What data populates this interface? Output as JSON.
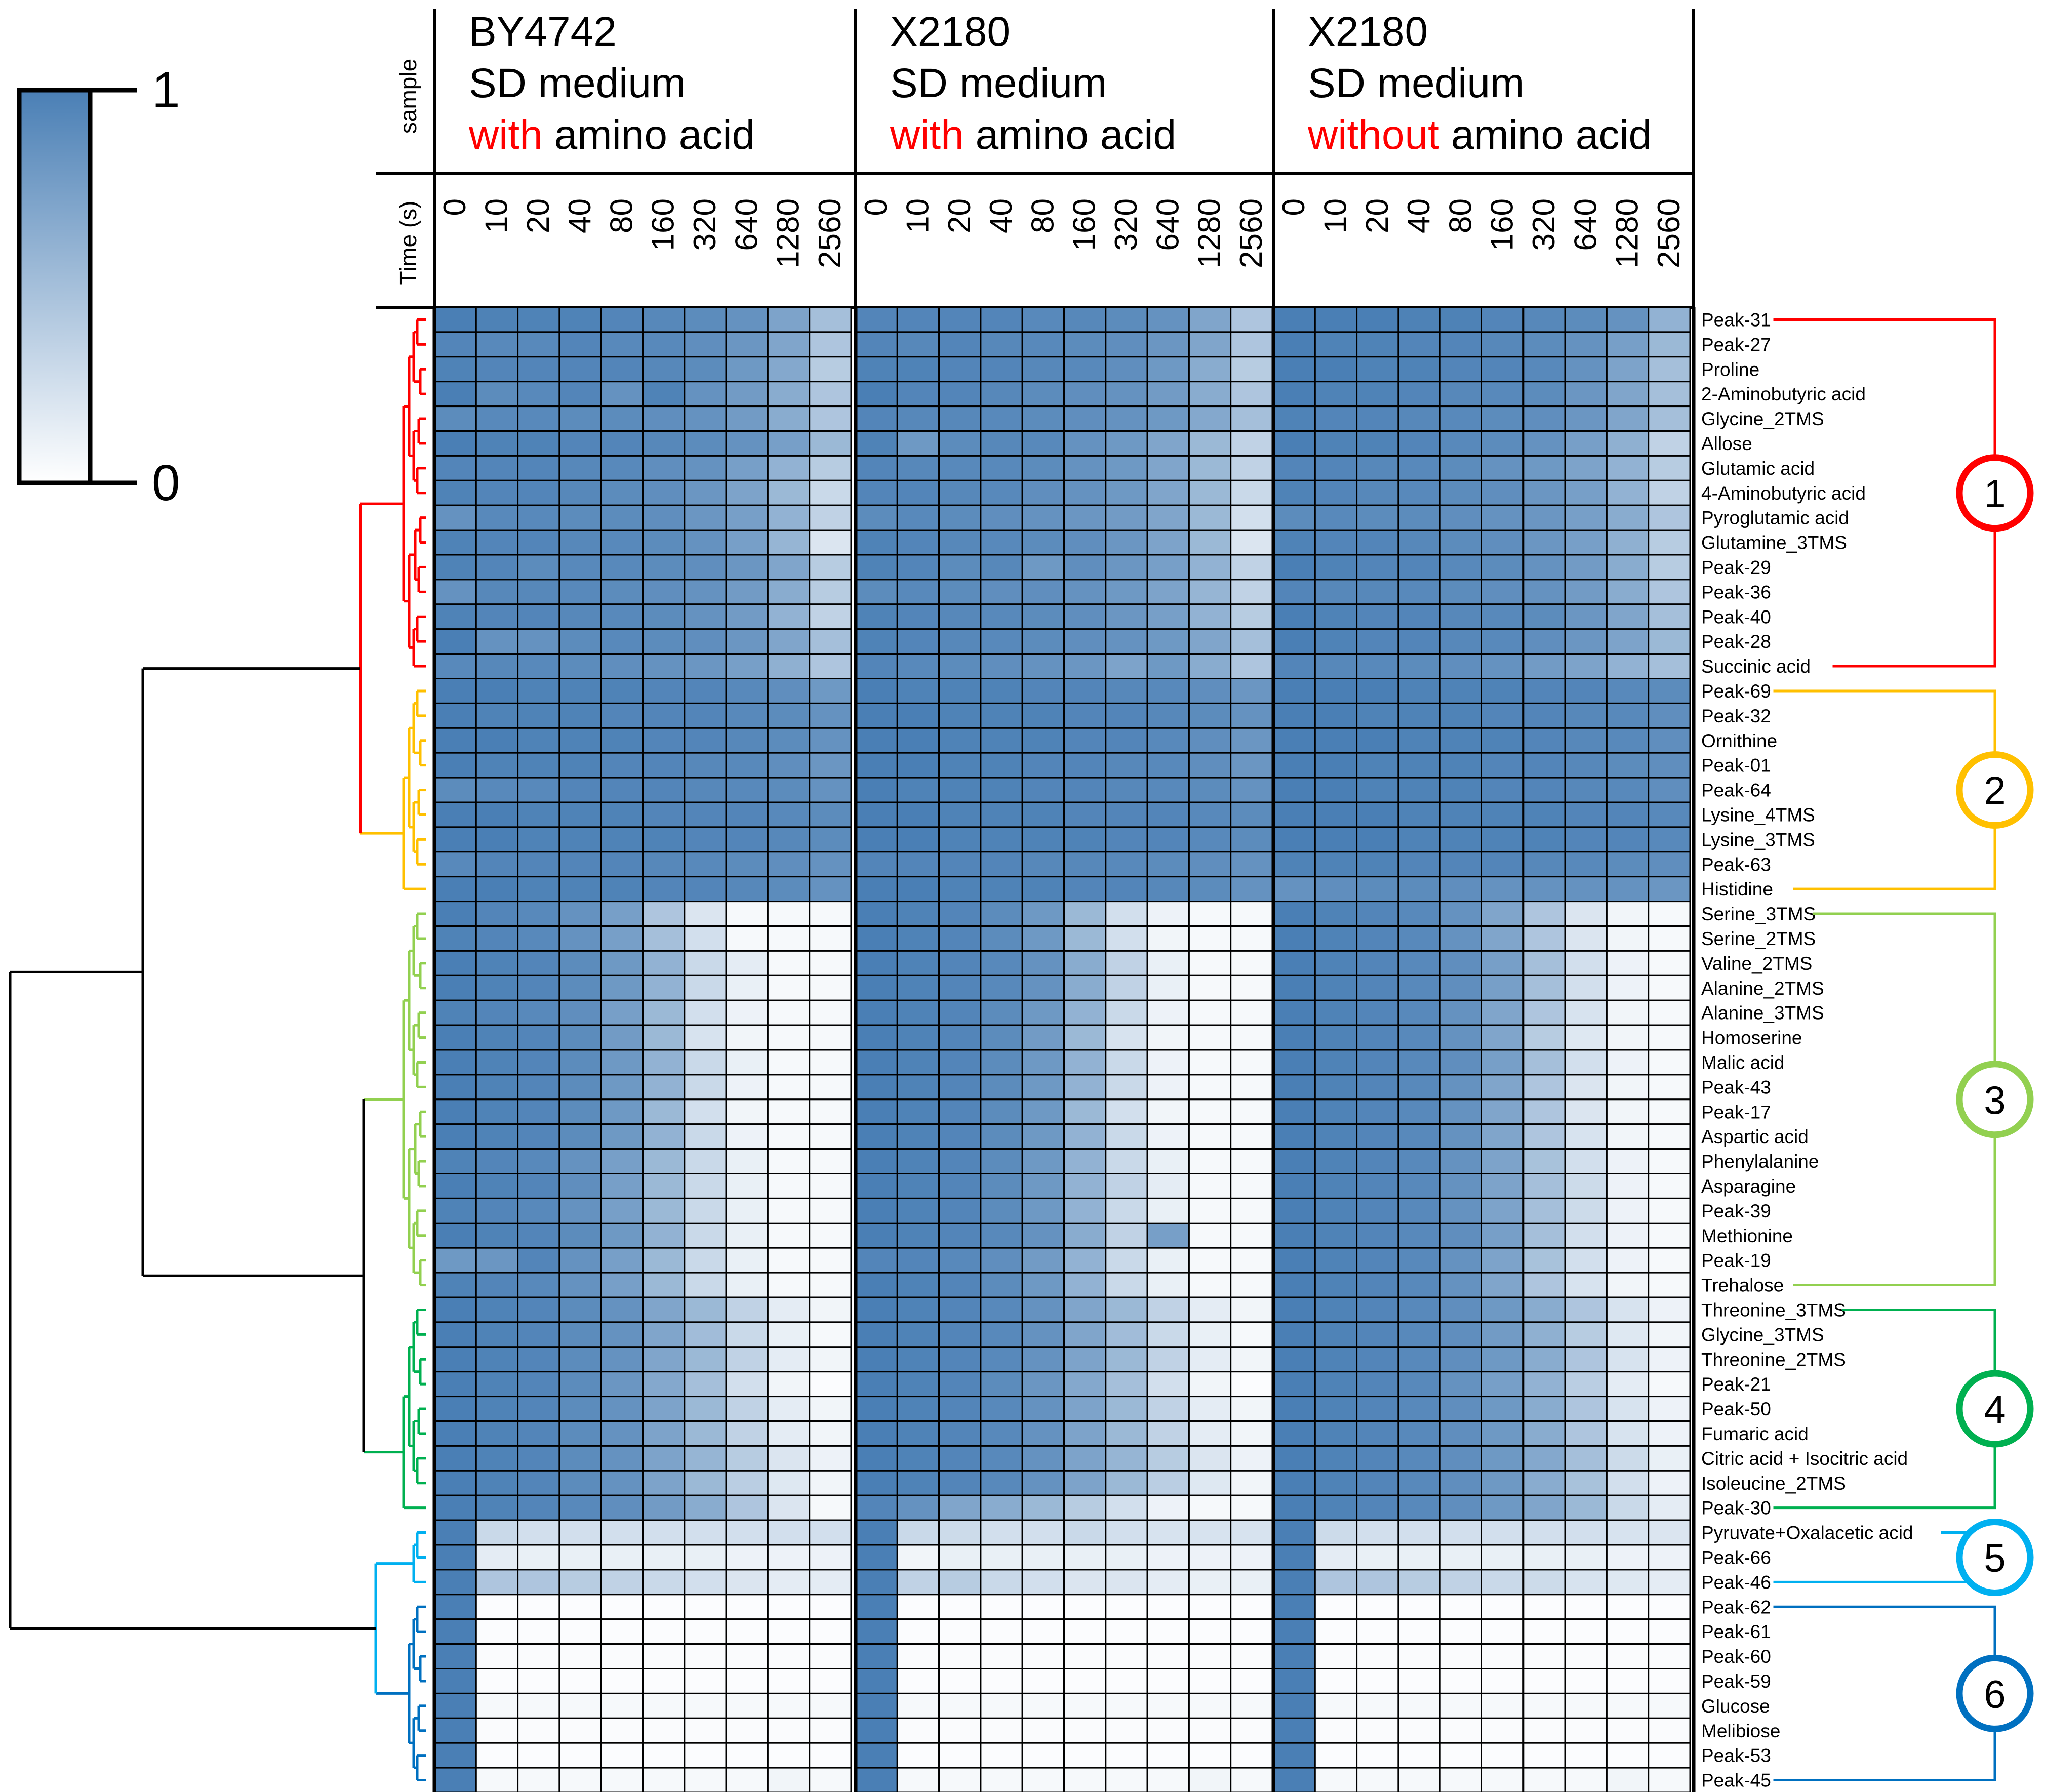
{
  "chart_data": {
    "type": "heatmap",
    "legend": {
      "max_label": "1",
      "min_label": "0",
      "high_color": "#4a7fb5",
      "low_color": "#ffffff"
    },
    "side_labels": {
      "sample": "sample",
      "time": "Time (s)"
    },
    "samples": [
      {
        "lines": [
          {
            "parts": [
              {
                "text": "BY4742",
                "highlight": false
              }
            ]
          },
          {
            "parts": [
              {
                "text": "SD medium",
                "highlight": false
              }
            ]
          },
          {
            "parts": [
              {
                "text": "with",
                "highlight": true
              },
              {
                "text": " amino acid",
                "highlight": false
              }
            ]
          }
        ]
      },
      {
        "lines": [
          {
            "parts": [
              {
                "text": "X2180",
                "highlight": false
              }
            ]
          },
          {
            "parts": [
              {
                "text": "SD medium",
                "highlight": false
              }
            ]
          },
          {
            "parts": [
              {
                "text": "with",
                "highlight": true
              },
              {
                "text": " amino acid",
                "highlight": false
              }
            ]
          }
        ]
      },
      {
        "lines": [
          {
            "parts": [
              {
                "text": "X2180",
                "highlight": false
              }
            ]
          },
          {
            "parts": [
              {
                "text": "SD medium",
                "highlight": false
              }
            ]
          },
          {
            "parts": [
              {
                "text": "without",
                "highlight": true
              },
              {
                "text": " amino acid",
                "highlight": false
              }
            ]
          }
        ]
      }
    ],
    "highlight_color": "#ff0000",
    "time_points": [
      "0",
      "10",
      "20",
      "40",
      "80",
      "160",
      "320",
      "640",
      "1280",
      "2560"
    ],
    "metabolites": [
      "Peak-31",
      "Peak-27",
      "Proline",
      "2-Aminobutyric acid",
      "Glycine_2TMS",
      "Allose",
      "Glutamic acid",
      "4-Aminobutyric acid",
      "Pyroglutamic acid",
      "Glutamine_3TMS",
      "Peak-29",
      "Peak-36",
      "Peak-40",
      "Peak-28",
      "Succinic acid",
      "Peak-69",
      "Peak-32",
      "Ornithine",
      "Peak-01",
      "Peak-64",
      "Lysine_4TMS",
      "Lysine_3TMS",
      "Peak-63",
      "Histidine",
      "Serine_3TMS",
      "Serine_2TMS",
      "Valine_2TMS",
      "Alanine_2TMS",
      "Alanine_3TMS",
      "Homoserine",
      "Malic acid",
      "Peak-43",
      "Peak-17",
      "Aspartic acid",
      "Phenylalanine",
      "Asparagine",
      "Peak-39",
      "Methionine",
      "Peak-19",
      "Trehalose",
      "Threonine_3TMS",
      "Glycine_3TMS",
      "Threonine_2TMS",
      "Peak-21",
      "Peak-50",
      "Fumaric acid",
      "Citric acid + Isocitric acid",
      "Isoleucine_2TMS",
      "Peak-30",
      "Pyruvate+Oxalacetic acid",
      "Peak-66",
      "Peak-46",
      "Peak-62",
      "Peak-61",
      "Peak-60",
      "Peak-59",
      "Glucose",
      "Melibiose",
      "Peak-53",
      "Peak-45"
    ],
    "clusters": [
      {
        "label": "1",
        "start": 0,
        "end": 14,
        "color": "#ff0000"
      },
      {
        "label": "2",
        "start": 15,
        "end": 23,
        "color": "#ffc000"
      },
      {
        "label": "3",
        "start": 24,
        "end": 39,
        "color": "#92d050"
      },
      {
        "label": "4",
        "start": 40,
        "end": 48,
        "color": "#00b050"
      },
      {
        "label": "5",
        "start": 49,
        "end": 51,
        "color": "#00b0f0"
      },
      {
        "label": "6",
        "start": 52,
        "end": 59,
        "color": "#0070c0"
      }
    ],
    "dendrogram_color": "#000000",
    "values": [
      [
        "1.00 0.98 0.97 0.97 0.95 0.93 0.90 0.85 0.72 0.50",
        "0.95 0.95 0.95 0.95 0.92 0.93 0.90 0.85 0.70 0.45",
        "1.00 1.00 1.00 0.98 0.98 0.95 0.93 0.90 0.85 0.60"
      ],
      [
        "0.95 0.92 0.92 0.95 0.92 0.92 0.88 0.82 0.70 0.45",
        "0.95 0.93 0.95 0.93 0.92 0.90 0.88 0.82 0.70 0.45",
        "1.00 0.97 0.97 0.95 0.95 0.93 0.90 0.85 0.75 0.55"
      ],
      [
        "0.97 0.95 0.95 0.95 0.95 0.93 0.90 0.80 0.68 0.40",
        "0.97 0.97 0.95 0.95 0.93 0.92 0.88 0.80 0.65 0.40",
        "1.00 1.00 0.97 0.97 0.95 0.95 0.92 0.85 0.72 0.50"
      ],
      [
        "1.00 0.90 0.92 0.95 0.85 0.97 0.85 0.78 0.65 0.45",
        "1.00 0.95 0.95 0.93 0.90 0.88 0.85 0.78 0.65 0.45",
        "1.00 0.97 0.97 0.95 0.93 0.92 0.90 0.82 0.70 0.50"
      ],
      [
        "0.90 0.92 0.92 0.90 0.90 0.88 0.85 0.78 0.65 0.45",
        "0.95 0.93 0.93 0.92 0.90 0.88 0.85 0.80 0.68 0.50",
        "0.97 0.95 0.95 0.93 0.92 0.90 0.88 0.82 0.70 0.50"
      ],
      [
        "1.00 0.97 0.97 0.95 0.95 0.93 0.90 0.85 0.75 0.55",
        "0.97 0.80 0.90 0.93 0.92 0.85 0.80 0.70 0.55 0.35",
        "1.00 0.97 0.97 0.95 0.92 0.90 0.85 0.75 0.62 0.35"
      ],
      [
        "0.95 0.95 0.95 0.93 0.92 0.88 0.85 0.75 0.60 0.40",
        "0.95 0.93 0.92 0.92 0.90 0.85 0.80 0.70 0.55 0.35",
        "0.95 0.95 0.93 0.92 0.90 0.85 0.80 0.72 0.60 0.40"
      ],
      [
        "0.97 0.95 0.95 0.93 0.90 0.88 0.82 0.72 0.55 0.30",
        "0.95 0.95 0.93 0.92 0.88 0.85 0.80 0.70 0.55 0.30",
        "0.97 0.95 0.93 0.92 0.90 0.88 0.82 0.75 0.60 0.35"
      ],
      [
        "0.85 0.92 0.92 0.90 0.90 0.88 0.82 0.75 0.60 0.35",
        "0.90 0.92 0.90 0.88 0.85 0.82 0.78 0.70 0.55 0.25",
        "0.90 0.92 0.90 0.90 0.88 0.85 0.82 0.75 0.65 0.45"
      ],
      [
        "0.97 0.95 0.95 0.93 0.92 0.90 0.85 0.75 0.58 0.20",
        "0.97 0.95 0.93 0.92 0.90 0.88 0.82 0.72 0.55 0.20",
        "0.97 0.95 0.95 0.93 0.90 0.88 0.82 0.75 0.62 0.40"
      ],
      [
        "0.97 0.95 0.90 0.92 0.92 0.90 0.88 0.82 0.70 0.40",
        "0.97 0.95 0.90 0.93 0.80 0.88 0.82 0.75 0.60 0.35",
        "1.00 0.97 0.95 0.95 0.92 0.90 0.85 0.78 0.65 0.40"
      ],
      [
        "0.85 0.93 0.93 0.92 0.90 0.88 0.85 0.78 0.65 0.40",
        "0.90 0.92 0.90 0.88 0.88 0.85 0.80 0.72 0.58 0.35",
        "0.95 0.93 0.93 0.92 0.90 0.88 0.85 0.78 0.65 0.45"
      ],
      [
        "0.97 0.95 0.95 0.93 0.92 0.90 0.85 0.78 0.60 0.35",
        "0.97 0.95 0.93 0.92 0.90 0.88 0.82 0.75 0.60 0.40",
        "1.00 0.97 0.95 0.95 0.93 0.92 0.90 0.82 0.70 0.50"
      ],
      [
        "1.00 0.85 0.85 0.90 0.92 0.90 0.88 0.82 0.70 0.50",
        "0.97 0.95 0.93 0.92 0.90 0.88 0.85 0.80 0.70 0.50",
        "1.00 0.97 0.95 0.95 0.93 0.92 0.88 0.82 0.72 0.55"
      ],
      [
        "0.92 0.93 0.92 0.90 0.88 0.85 0.82 0.75 0.62 0.45",
        "0.95 0.92 0.90 0.88 0.85 0.82 0.72 0.80 0.65 0.45",
        "0.95 0.93 0.92 0.90 0.88 0.85 0.78 0.72 0.60 0.50"
      ],
      [
        "1.00 1.00 0.97 0.97 0.97 0.95 0.95 0.92 0.88 0.80",
        "1.00 0.97 0.97 0.97 0.95 0.95 0.93 0.92 0.88 0.82",
        "1.00 1.00 1.00 0.97 0.97 0.97 0.95 0.95 0.92 0.90"
      ],
      [
        "1.00 0.97 0.97 0.97 0.95 0.95 0.95 0.92 0.90 0.85",
        "1.00 1.00 0.97 0.97 0.97 0.95 0.95 0.93 0.90 0.85",
        "1.00 1.00 0.97 0.97 0.97 0.95 0.95 0.93 0.92 0.88"
      ],
      [
        "1.00 1.00 0.97 0.97 0.97 0.95 0.95 0.93 0.90 0.85",
        "1.00 1.00 0.97 0.97 0.97 0.95 0.95 0.92 0.88 0.82",
        "1.00 1.00 1.00 0.97 0.97 0.97 0.95 0.93 0.92 0.88"
      ],
      [
        "1.00 0.97 0.97 0.97 0.95 0.95 0.93 0.92 0.88 0.82",
        "1.00 1.00 0.97 0.97 0.95 0.95 0.93 0.92 0.88 0.82",
        "1.00 1.00 0.97 0.97 0.97 0.95 0.95 0.93 0.90 0.88"
      ],
      [
        "0.90 0.92 0.92 0.95 0.95 0.95 0.93 0.92 0.90 0.85",
        "1.00 0.97 0.97 0.97 0.95 0.95 0.93 0.92 0.90 0.85",
        "1.00 1.00 0.97 0.97 0.97 0.95 0.95 0.93 0.92 0.88"
      ],
      [
        "1.00 1.00 0.97 0.97 0.97 0.95 0.95 0.95 0.92 0.90",
        "1.00 1.00 0.97 0.97 0.97 0.95 0.95 0.95 0.92 0.90",
        "1.00 1.00 1.00 0.97 0.97 0.97 0.97 0.95 0.95 0.92"
      ],
      [
        "1.00 1.00 0.97 0.97 0.97 0.97 0.95 0.95 0.93 0.90",
        "1.00 1.00 0.97 0.97 0.97 0.97 0.95 0.95 0.92 0.90",
        "1.00 1.00 1.00 0.97 0.97 0.97 0.97 0.95 0.95 0.92"
      ],
      [
        "0.92 0.95 0.95 0.95 0.95 0.93 0.92 0.90 0.88 0.85",
        "0.95 0.95 0.95 0.95 0.93 0.93 0.92 0.90 0.88 0.85",
        "0.97 0.97 0.97 0.95 0.95 0.95 0.93 0.92 0.90 0.88"
      ],
      [
        "1.00 1.00 0.97 0.97 0.97 0.95 0.95 0.93 0.90 0.85",
        "1.00 1.00 0.97 0.97 0.97 0.95 0.95 0.93 0.90 0.85",
        "0.85 0.88 0.90 0.90 0.88 0.85 0.85 0.85 0.85 0.82"
      ],
      [
        "1.00 0.95 0.92 0.85 0.75 0.45 0.20 0.05 0.05 0.05",
        "1.00 0.97 0.95 0.90 0.80 0.55 0.25 0.10 0.05 0.05",
        "1.00 0.97 0.95 0.92 0.85 0.70 0.45 0.20 0.08 0.05"
      ],
      [
        "0.97 0.95 0.92 0.85 0.75 0.50 0.25 0.05 0.05 0.05",
        "1.00 0.97 0.95 0.90 0.80 0.55 0.25 0.08 0.05 0.05",
        "1.00 0.97 0.95 0.92 0.85 0.70 0.45 0.20 0.08 0.05"
      ],
      [
        "1.00 0.97 0.95 0.90 0.80 0.60 0.30 0.15 0.05 0.05",
        "1.00 0.97 0.95 0.92 0.85 0.65 0.35 0.12 0.05 0.05",
        "1.00 0.97 0.95 0.92 0.88 0.75 0.50 0.25 0.10 0.05"
      ],
      [
        "1.00 0.97 0.95 0.90 0.80 0.60 0.30 0.12 0.05 0.05",
        "1.00 0.97 0.95 0.92 0.85 0.65 0.35 0.12 0.05 0.05",
        "1.00 0.97 0.95 0.92 0.88 0.75 0.50 0.25 0.10 0.05"
      ],
      [
        "0.97 0.95 0.92 0.88 0.75 0.55 0.25 0.10 0.05 0.05",
        "1.00 0.97 0.95 0.90 0.80 0.60 0.30 0.10 0.05 0.05",
        "1.00 0.97 0.95 0.92 0.85 0.70 0.45 0.22 0.08 0.05"
      ],
      [
        "1.00 0.97 0.95 0.90 0.78 0.55 0.22 0.08 0.05 0.05",
        "1.00 0.97 0.95 0.90 0.78 0.55 0.22 0.08 0.05 0.05",
        "1.00 0.97 0.95 0.92 0.85 0.70 0.40 0.18 0.08 0.05"
      ],
      [
        "1.00 0.97 0.95 0.90 0.80 0.60 0.30 0.12 0.05 0.05",
        "1.00 0.97 0.95 0.90 0.80 0.60 0.30 0.10 0.05 0.05",
        "1.00 0.97 0.95 0.92 0.88 0.75 0.50 0.25 0.10 0.05"
      ],
      [
        "1.00 0.97 0.95 0.90 0.80 0.60 0.30 0.10 0.05 0.05",
        "1.00 0.97 0.95 0.90 0.80 0.60 0.30 0.10 0.05 0.05",
        "1.00 0.97 0.95 0.92 0.85 0.70 0.45 0.20 0.08 0.05"
      ],
      [
        "1.00 0.97 0.95 0.90 0.80 0.55 0.25 0.08 0.05 0.05",
        "1.00 0.97 0.95 0.90 0.80 0.55 0.25 0.08 0.05 0.05",
        "1.00 0.97 0.95 0.92 0.85 0.70 0.45 0.20 0.08 0.05"
      ],
      [
        "1.00 0.97 0.95 0.90 0.80 0.60 0.30 0.10 0.05 0.05",
        "1.00 0.97 0.95 0.90 0.80 0.60 0.30 0.10 0.05 0.05",
        "1.00 0.97 0.95 0.92 0.85 0.70 0.45 0.22 0.08 0.05"
      ],
      [
        "0.97 0.95 0.92 0.85 0.75 0.55 0.30 0.12 0.05 0.05",
        "1.00 0.97 0.95 0.90 0.80 0.60 0.30 0.12 0.05 0.05",
        "1.00 0.97 0.95 0.92 0.85 0.72 0.48 0.25 0.10 0.05"
      ],
      [
        "1.00 0.97 0.95 0.88 0.75 0.55 0.30 0.12 0.05 0.05",
        "1.00 0.97 0.95 0.90 0.80 0.60 0.35 0.15 0.05 0.05",
        "1.00 0.97 0.95 0.92 0.85 0.72 0.50 0.28 0.10 0.05"
      ],
      [
        "0.97 0.95 0.92 0.85 0.75 0.55 0.30 0.12 0.05 0.05",
        "1.00 0.97 0.95 0.90 0.80 0.60 0.30 0.12 0.05 0.05",
        "1.00 0.97 0.95 0.92 0.85 0.72 0.50 0.28 0.10 0.05"
      ],
      [
        "1.00 0.97 0.95 0.90 0.80 0.60 0.30 0.12 0.05 0.05",
        "1.00 0.97 0.95 0.92 0.85 0.65 0.35 0.75 0.05 0.05",
        "1.00 0.97 0.95 0.92 0.88 0.75 0.50 0.25 0.10 0.05"
      ],
      [
        "0.80 0.82 0.95 0.85 0.75 0.55 0.30 0.12 0.05 0.05",
        "0.95 0.95 0.92 0.88 0.78 0.60 0.30 0.12 0.05 0.05",
        "1.00 0.97 0.95 0.92 0.85 0.72 0.48 0.25 0.10 0.05"
      ],
      [
        "0.97 0.95 0.92 0.85 0.75 0.55 0.30 0.12 0.05 0.05",
        "1.00 0.97 0.95 0.90 0.80 0.60 0.30 0.12 0.05 0.05",
        "1.00 0.97 0.95 0.92 0.85 0.70 0.45 0.22 0.08 0.05"
      ],
      [
        "1.00 0.97 0.95 0.90 0.85 0.70 0.55 0.35 0.15 0.08",
        "1.00 0.97 0.95 0.92 0.85 0.70 0.55 0.35 0.15 0.08",
        "1.00 0.97 0.95 0.92 0.88 0.80 0.65 0.45 0.22 0.10"
      ],
      [
        "1.00 0.97 0.95 0.90 0.85 0.70 0.52 0.30 0.12 0.05",
        "1.00 0.97 0.95 0.92 0.85 0.70 0.52 0.30 0.12 0.05",
        "1.00 0.97 0.95 0.92 0.88 0.78 0.62 0.40 0.18 0.08"
      ],
      [
        "1.00 0.97 0.95 0.90 0.85 0.70 0.55 0.35 0.15 0.08",
        "1.00 0.97 0.95 0.92 0.85 0.72 0.55 0.35 0.15 0.08",
        "1.00 0.97 0.95 0.92 0.88 0.80 0.65 0.45 0.22 0.10"
      ],
      [
        "1.00 0.97 0.95 0.90 0.82 0.68 0.50 0.25 0.08 0.02",
        "1.00 0.97 0.95 0.90 0.82 0.68 0.50 0.25 0.08 0.02",
        "1.00 0.97 0.95 0.92 0.85 0.75 0.60 0.38 0.15 0.05"
      ],
      [
        "1.00 0.97 0.95 0.90 0.85 0.72 0.55 0.35 0.15 0.08",
        "1.00 0.97 0.95 0.92 0.85 0.72 0.55 0.35 0.15 0.08",
        "1.00 0.97 0.95 0.92 0.88 0.80 0.65 0.45 0.22 0.10"
      ],
      [
        "1.00 0.97 0.95 0.90 0.85 0.72 0.55 0.35 0.15 0.08",
        "1.00 0.97 0.95 0.92 0.85 0.72 0.55 0.35 0.15 0.08",
        "1.00 0.97 0.95 0.92 0.88 0.80 0.65 0.45 0.22 0.10"
      ],
      [
        "1.00 0.97 0.95 0.90 0.85 0.72 0.58 0.40 0.20 0.10",
        "1.00 0.97 0.95 0.92 0.85 0.72 0.58 0.40 0.20 0.10",
        "1.00 0.97 0.95 0.92 0.88 0.80 0.68 0.50 0.28 0.12"
      ],
      [
        "1.00 0.97 0.95 0.90 0.85 0.72 0.55 0.38 0.18 0.08",
        "1.00 0.97 0.95 0.92 0.85 0.72 0.55 0.38 0.18 0.08",
        "1.00 0.97 0.95 0.92 0.88 0.80 0.65 0.48 0.25 0.10"
      ],
      [
        "1.00 0.97 0.95 0.92 0.88 0.78 0.65 0.45 0.20 0.05",
        "0.95 0.85 0.70 0.65 0.55 0.40 0.25 0.10 0.05 0.05",
        "1.00 0.97 0.95 0.92 0.88 0.80 0.70 0.55 0.30 0.15"
      ],
      [
        "1.00 0.30 0.25 0.25 0.25 0.25 0.25 0.25 0.25 0.25",
        "1.00 0.30 0.28 0.25 0.25 0.30 0.25 0.22 0.22 0.22",
        "1.00 0.28 0.25 0.25 0.25 0.25 0.25 0.25 0.22 0.20"
      ],
      [
        "1.00 0.15 0.12 0.12 0.12 0.12 0.12 0.10 0.10 0.10",
        "1.00 0.08 0.12 0.12 0.12 0.12 0.12 0.10 0.10 0.10",
        "1.00 0.15 0.12 0.12 0.12 0.12 0.12 0.12 0.10 0.10"
      ],
      [
        "1.00 0.45 0.45 0.40 0.35 0.30 0.25 0.20 0.15 0.15",
        "1.00 0.35 0.40 0.30 0.25 0.20 0.20 0.15 0.12 0.12",
        "1.00 0.45 0.45 0.40 0.35 0.30 0.28 0.22 0.18 0.15"
      ],
      [
        "1.00 0.02 0.02 0.02 0.02 0.02 0.02 0.02 0.02 0.02",
        "1.00 0.02 0.02 0.02 0.02 0.02 0.02 0.02 0.02 0.02",
        "1.00 0.02 0.02 0.02 0.02 0.02 0.02 0.02 0.02 0.02"
      ],
      [
        "1.00 0.02 0.02 0.02 0.02 0.02 0.02 0.02 0.02 0.02",
        "1.00 0.02 0.02 0.02 0.02 0.02 0.02 0.02 0.02 0.02",
        "1.00 0.02 0.02 0.02 0.02 0.02 0.02 0.02 0.02 0.02"
      ],
      [
        "1.00 0.03 0.03 0.03 0.03 0.03 0.03 0.03 0.03 0.03",
        "1.00 0.03 0.03 0.03 0.03 0.03 0.03 0.03 0.03 0.03",
        "1.00 0.03 0.03 0.03 0.03 0.03 0.03 0.03 0.03 0.03"
      ],
      [
        "1.00 0.02 0.02 0.02 0.02 0.02 0.02 0.02 0.02 0.02",
        "1.00 0.02 0.02 0.02 0.02 0.02 0.02 0.02 0.02 0.02",
        "1.00 0.02 0.02 0.02 0.02 0.02 0.02 0.02 0.02 0.02"
      ],
      [
        "1.00 0.05 0.05 0.05 0.05 0.05 0.05 0.05 0.05 0.05",
        "1.00 0.05 0.05 0.05 0.05 0.05 0.05 0.05 0.05 0.05",
        "1.00 0.05 0.05 0.05 0.05 0.05 0.05 0.05 0.05 0.05"
      ],
      [
        "1.00 0.03 0.03 0.03 0.03 0.03 0.03 0.03 0.03 0.03",
        "1.00 0.03 0.03 0.03 0.03 0.03 0.03 0.03 0.03 0.03",
        "1.00 0.03 0.03 0.03 0.03 0.03 0.03 0.03 0.03 0.03"
      ],
      [
        "1.00 0.02 0.02 0.02 0.02 0.02 0.02 0.02 0.02 0.02",
        "1.00 0.02 0.02 0.02 0.02 0.02 0.02 0.02 0.02 0.02",
        "1.00 0.02 0.02 0.02 0.02 0.02 0.02 0.02 0.02 0.02"
      ],
      [
        "1.00 0.05 0.05 0.05 0.05 0.05 0.05 0.05 0.08 0.05",
        "1.00 0.05 0.05 0.05 0.05 0.05 0.05 0.05 0.08 0.05",
        "1.00 0.05 0.05 0.05 0.05 0.05 0.05 0.05 0.08 0.05"
      ]
    ]
  }
}
